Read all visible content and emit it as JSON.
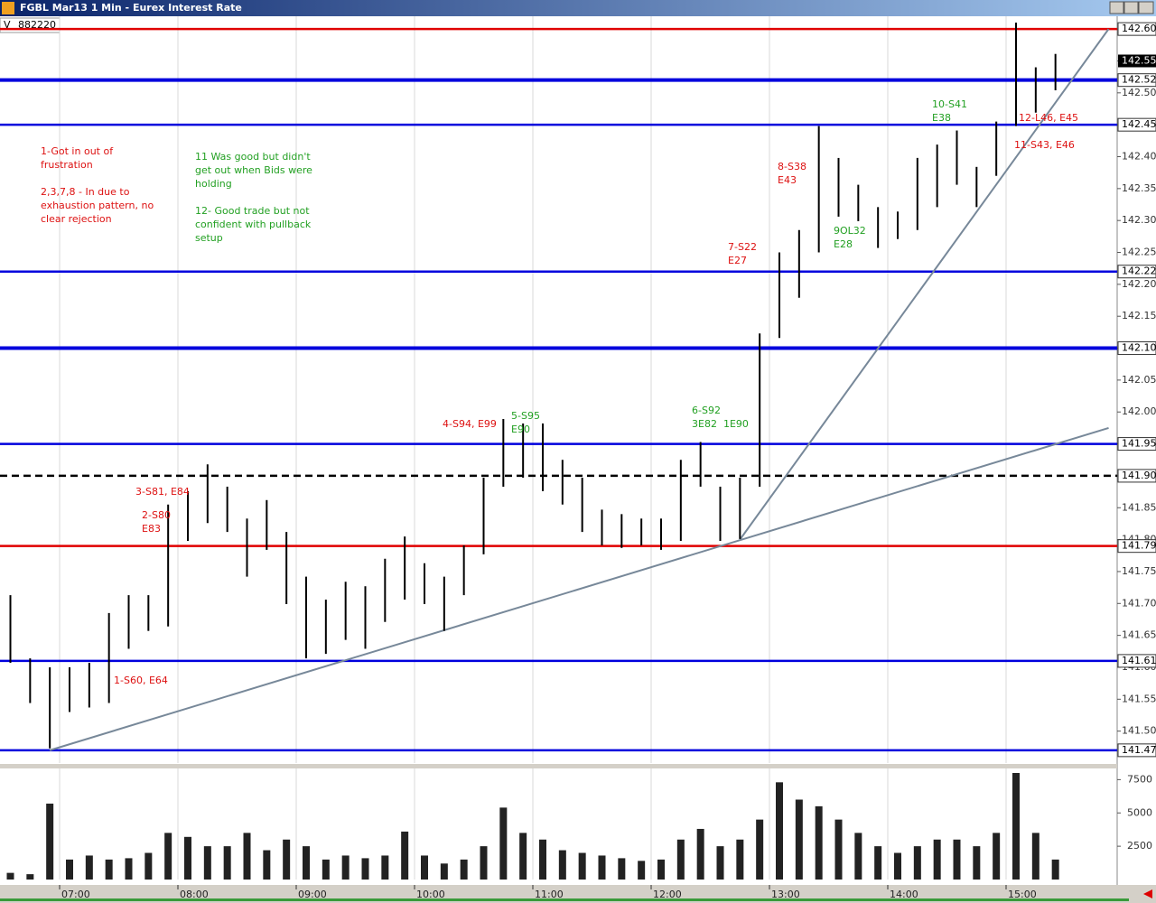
{
  "chart_data": {
    "type": "ohlc",
    "title": "FGBL Mar13 1 Min - Eurex Interest Rate",
    "volume_label": "V",
    "volume_total": 882220,
    "x": [
      "06:30",
      "06:40",
      "06:50",
      "07:00",
      "07:10",
      "07:20",
      "07:30",
      "07:40",
      "07:50",
      "08:00",
      "08:10",
      "08:20",
      "08:30",
      "08:40",
      "08:50",
      "09:00",
      "09:10",
      "09:20",
      "09:30",
      "09:40",
      "09:50",
      "10:00",
      "10:10",
      "10:20",
      "10:30",
      "10:40",
      "10:50",
      "11:00",
      "11:10",
      "11:20",
      "11:30",
      "11:40",
      "11:50",
      "12:00",
      "12:10",
      "12:20",
      "12:30",
      "12:40",
      "12:50",
      "13:00",
      "13:10",
      "13:20",
      "13:30",
      "13:40",
      "13:50",
      "14:00",
      "14:10",
      "14:20",
      "14:30",
      "14:40",
      "14:50",
      "15:00",
      "15:10",
      "15:20"
    ],
    "high": [
      141.713,
      141.614,
      141.6,
      141.6,
      141.607,
      141.685,
      141.713,
      141.713,
      141.855,
      141.876,
      141.918,
      141.883,
      141.833,
      141.862,
      141.812,
      141.742,
      141.706,
      141.734,
      141.727,
      141.77,
      141.805,
      141.763,
      141.742,
      141.791,
      141.897,
      141.989,
      141.982,
      141.982,
      141.925,
      141.897,
      141.847,
      141.84,
      141.833,
      141.833,
      141.925,
      141.953,
      141.883,
      141.897,
      142.123,
      142.25,
      142.285,
      142.448,
      142.398,
      142.356,
      142.321,
      142.314,
      142.398,
      142.419,
      142.441,
      142.384,
      142.455,
      142.61,
      142.54,
      142.561
    ],
    "low": [
      141.607,
      141.544,
      141.473,
      141.53,
      141.537,
      141.544,
      141.629,
      141.657,
      141.664,
      141.798,
      141.826,
      141.812,
      141.742,
      141.784,
      141.699,
      141.614,
      141.621,
      141.643,
      141.629,
      141.671,
      141.706,
      141.699,
      141.657,
      141.713,
      141.777,
      141.883,
      141.897,
      141.876,
      141.855,
      141.812,
      141.791,
      141.787,
      141.791,
      141.784,
      141.798,
      141.883,
      141.798,
      141.801,
      141.883,
      142.116,
      142.179,
      142.25,
      142.306,
      142.299,
      142.257,
      142.271,
      142.285,
      142.321,
      142.356,
      142.321,
      142.37,
      142.448,
      142.469,
      142.504
    ],
    "color": "#000000",
    "ylim": [
      141.45,
      142.62
    ],
    "yticks": [
      {
        "value": 142.6,
        "label": "142.60"
      },
      142.55,
      {
        "value": 142.5,
        "label": "142.50"
      },
      142.45,
      {
        "value": 142.4,
        "label": "142.40"
      },
      142.35,
      {
        "value": 142.3,
        "label": "142.30"
      },
      142.25,
      {
        "value": 142.2,
        "label": "142.20"
      },
      142.15,
      {
        "value": 142.1,
        "label": "142.10"
      },
      142.05,
      {
        "value": 142.0,
        "label": "142.00"
      },
      141.95,
      {
        "value": 141.9,
        "label": "141.90"
      },
      141.85,
      {
        "value": 141.8,
        "label": "141.80"
      },
      141.75,
      {
        "value": 141.7,
        "label": "141.70"
      },
      141.65,
      {
        "value": 141.6,
        "label": "141.60"
      },
      141.55,
      {
        "value": 141.5,
        "label": "141.50"
      }
    ],
    "xticks": [
      "07:00",
      "08:00",
      "09:00",
      "10:00",
      "11:00",
      "12:00",
      "13:00",
      "14:00",
      "15:00"
    ],
    "grid": "x",
    "last_price": 142.55,
    "levels": [
      {
        "value": {
          "value": 142.6,
          "label": "142.60"
        },
        "color": "#e00000",
        "thick": false
      },
      {
        "value": 142.52,
        "color": "#0000dd",
        "thick": true
      },
      {
        "value": 142.45,
        "color": "#0000dd",
        "thick": false
      },
      {
        "value": 142.22,
        "color": "#0000dd",
        "thick": false
      },
      {
        "value": {
          "value": 142.1,
          "label": "142.10"
        },
        "color": "#0000dd",
        "thick": true
      },
      {
        "value": 141.95,
        "color": "#0000dd",
        "thick": false
      },
      {
        "value": {
          "value": 141.9,
          "label": "141.90"
        },
        "color": "#000000",
        "thick": false,
        "dashed": true
      },
      {
        "value": 141.79,
        "color": "#e00000",
        "thick": false
      },
      {
        "value": 141.61,
        "color": "#0000dd",
        "thick": false
      },
      {
        "value": 141.47,
        "color": "#0000dd",
        "thick": false
      }
    ],
    "trendlines": [
      {
        "x": [
          "06:55",
          "15:52"
        ],
        "y": [
          141.47,
          141.975
        ],
        "color": "#778899"
      },
      {
        "x": [
          "12:45",
          "15:52"
        ],
        "y": [
          141.8,
          142.6
        ],
        "color": "#778899"
      }
    ],
    "annotations": [
      {
        "text": "1-Got in out of",
        "color": "#dd1111"
      },
      {
        "text": "frustration",
        "color": "#dd1111"
      },
      {
        "text": "2,3,7,8 - In due to",
        "color": "#dd1111"
      },
      {
        "text": "exhaustion pattern, no",
        "color": "#dd1111"
      },
      {
        "text": "clear rejection",
        "color": "#dd1111"
      },
      {
        "text": "11 Was good but didn't",
        "color": "#22a022"
      },
      {
        "text": "get out when Bids were",
        "color": "#22a022"
      },
      {
        "text": "holding",
        "color": "#22a022"
      },
      {
        "text": "12- Good trade but not",
        "color": "#22a022"
      },
      {
        "text": "confident with pullback",
        "color": "#22a022"
      },
      {
        "text": "setup",
        "color": "#22a022"
      },
      {
        "text": "1-S60, E64",
        "color": "#dd1111"
      },
      {
        "text": "2-S80",
        "color": "#dd1111"
      },
      {
        "text": "E83",
        "color": "#dd1111"
      },
      {
        "text": "3-S81, E84",
        "color": "#dd1111"
      },
      {
        "text": "4-S94, E99",
        "color": "#dd1111"
      },
      {
        "text": "5-S95",
        "color": "#22a022"
      },
      {
        "text": "E90",
        "color": "#22a022"
      },
      {
        "text": "6-S92",
        "color": "#22a022"
      },
      {
        "text": "3E82  1E90",
        "color": "#22a022"
      },
      {
        "text": "7-S22",
        "color": "#dd1111"
      },
      {
        "text": "E27",
        "color": "#dd1111"
      },
      {
        "text": "8-S38",
        "color": "#dd1111"
      },
      {
        "text": "E43",
        "color": "#dd1111"
      },
      {
        "text": "9OL32",
        "color": "#22a022"
      },
      {
        "text": "E28",
        "color": "#22a022"
      },
      {
        "text": "10-S41",
        "color": "#22a022"
      },
      {
        "text": "E38",
        "color": "#22a022"
      },
      {
        "text": "12-L46, E45",
        "color": "#dd1111"
      },
      {
        "text": "11-S43, E46",
        "color": "#dd1111"
      }
    ],
    "volume": {
      "values": [
        500,
        400,
        5700,
        1500,
        1800,
        1500,
        1600,
        2000,
        3500,
        3200,
        2500,
        2500,
        3500,
        2200,
        3000,
        2500,
        1500,
        1800,
        1600,
        1800,
        3600,
        1800,
        1200,
        1500,
        2500,
        5400,
        3500,
        3000,
        2200,
        2000,
        1800,
        1600,
        1400,
        1500,
        3000,
        3800,
        2500,
        3000,
        4500,
        7300,
        6000,
        5500,
        4500,
        3500,
        2500,
        2000,
        2500,
        3000,
        3000,
        2500,
        3500,
        8000,
        3500,
        1500
      ],
      "color": "#222222",
      "ylim": [
        0,
        8000
      ],
      "yticks": [
        2500,
        5000,
        7500
      ]
    }
  }
}
